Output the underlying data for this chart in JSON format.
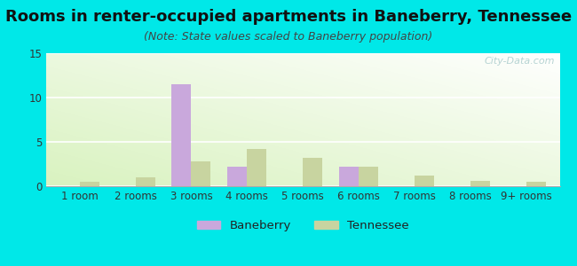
{
  "title": "Rooms in renter-occupied apartments in Baneberry, Tennessee",
  "subtitle": "(Note: State values scaled to Baneberry population)",
  "categories": [
    "1 room",
    "2 rooms",
    "3 rooms",
    "4 rooms",
    "5 rooms",
    "6 rooms",
    "7 rooms",
    "8 rooms",
    "9+ rooms"
  ],
  "baneberry_values": [
    0,
    0,
    11.5,
    2.2,
    0,
    2.2,
    0,
    0,
    0
  ],
  "tennessee_values": [
    0.5,
    1.0,
    2.8,
    4.2,
    3.2,
    2.2,
    1.2,
    0.6,
    0.5
  ],
  "baneberry_color": "#c9a8dc",
  "tennessee_color": "#c8d4a0",
  "ylim": [
    0,
    15
  ],
  "yticks": [
    0,
    5,
    10,
    15
  ],
  "bar_width": 0.35,
  "background_color": "#00e8e8",
  "watermark": "City-Data.com",
  "title_fontsize": 13,
  "subtitle_fontsize": 9,
  "tick_fontsize": 8.5,
  "legend_fontsize": 9.5
}
